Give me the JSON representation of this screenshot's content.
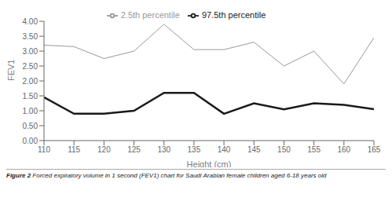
{
  "chart_data": {
    "type": "line",
    "x": [
      110,
      115,
      120,
      125,
      130,
      135,
      140,
      145,
      150,
      155,
      160,
      165
    ],
    "series": [
      {
        "name": "2.5th percentile",
        "color": "#999999",
        "values": [
          3.2,
          3.15,
          2.75,
          3.0,
          3.9,
          3.05,
          3.05,
          3.3,
          2.5,
          3.0,
          1.9,
          3.45
        ]
      },
      {
        "name": "97.5th percentile",
        "color": "#1a1a1a",
        "values": [
          1.45,
          0.9,
          0.9,
          1.0,
          1.6,
          1.6,
          0.9,
          1.25,
          1.05,
          1.25,
          1.2,
          1.05
        ]
      }
    ],
    "xlabel": "Height (cm)",
    "ylabel": "FEV1",
    "xlim": [
      110,
      165
    ],
    "xticks": [
      110,
      115,
      120,
      125,
      130,
      135,
      140,
      145,
      150,
      155,
      160,
      165
    ],
    "ylim": [
      0.0,
      4.0
    ],
    "yticks": [
      {
        "value": 0.0,
        "label": "0.00"
      },
      {
        "value": 0.5,
        "label": "0.50"
      },
      {
        "value": 1.0,
        "label": "1.00"
      },
      {
        "value": 1.5,
        "label": "1.50"
      },
      {
        "value": 2.0,
        "label": "2.00"
      },
      {
        "value": 2.5,
        "label": "2.50"
      },
      {
        "value": 3.0,
        "label": "3.00"
      },
      {
        "value": 3.5,
        "label": "3.50"
      },
      {
        "value": 4.0,
        "label": "4.00"
      }
    ],
    "grid": false,
    "legend": "top",
    "annotations": [
      "Figure 2",
      "Forced expiratory volume in 1 second (FEV1) chart for Saudi Arabian female children aged 6-18 years old"
    ]
  }
}
